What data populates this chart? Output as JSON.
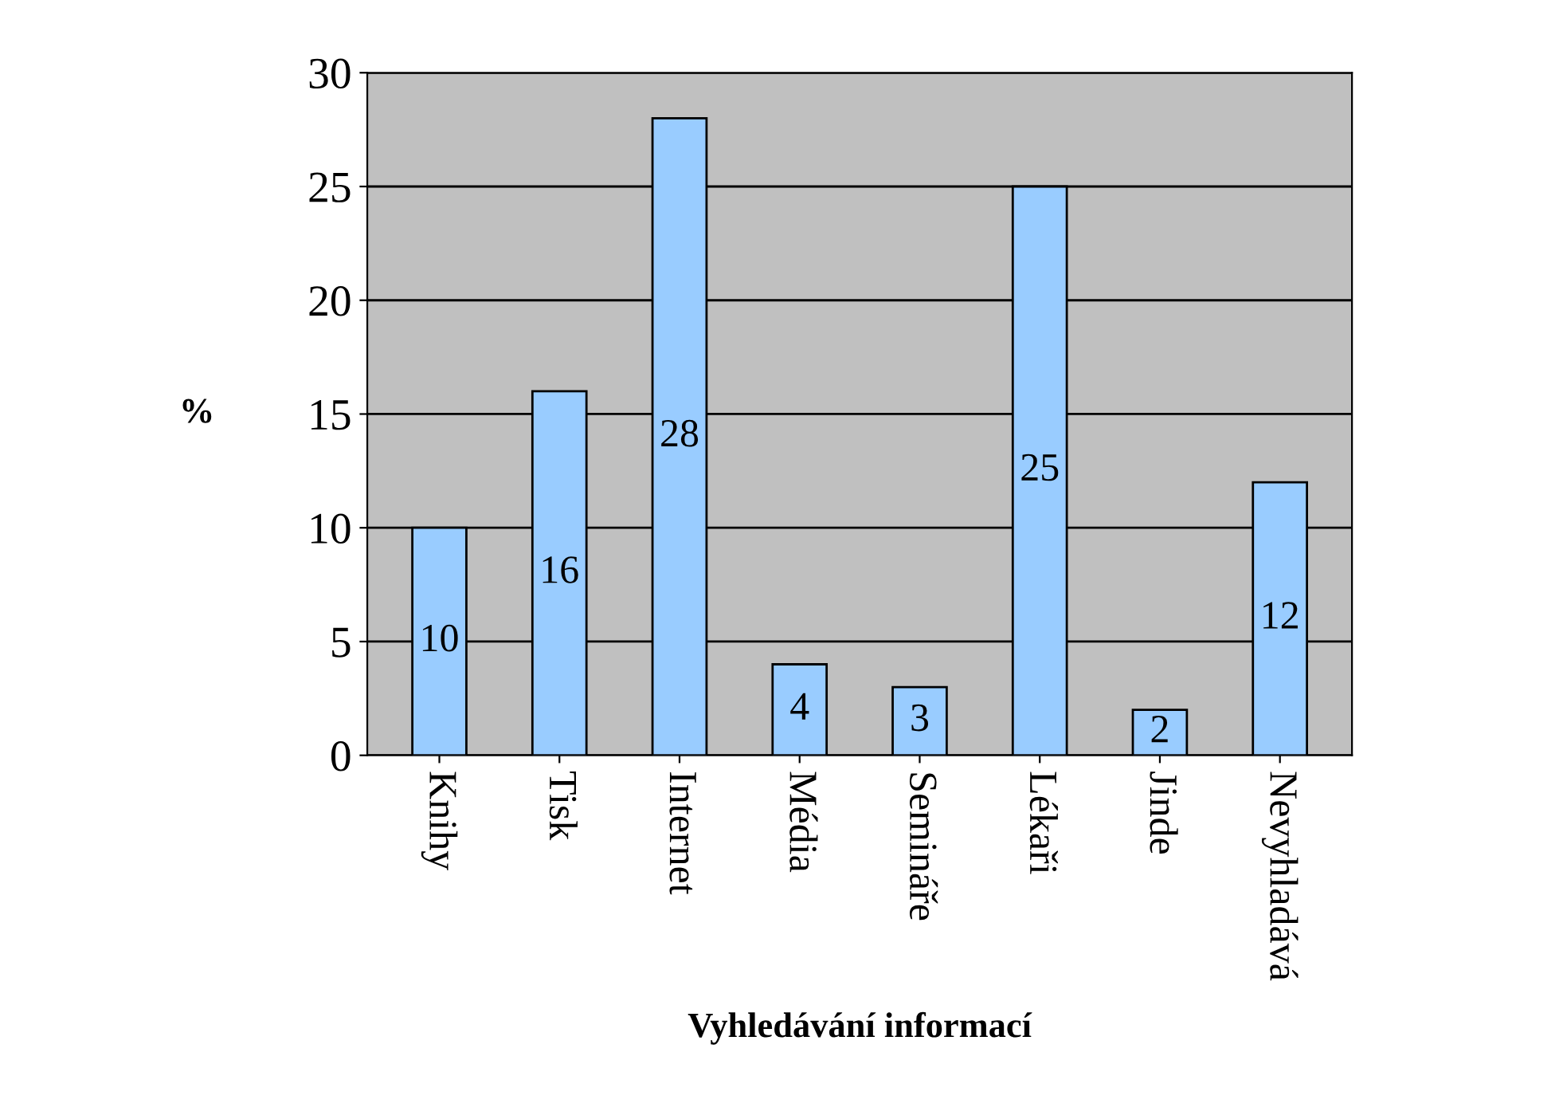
{
  "chart_data": {
    "type": "bar",
    "xlabel": "Vyhledávání informací",
    "ylabel": "%",
    "categories": [
      "Knihy",
      "Tisk",
      "Internet",
      "Média",
      "Semináře",
      "Lékaři",
      "Jinde",
      "Nevyhladává"
    ],
    "values": [
      10,
      16,
      28,
      4,
      3,
      25,
      2,
      12
    ],
    "color": "#99ccff",
    "ylim": [
      0,
      30
    ],
    "yticks": [
      0,
      5,
      10,
      15,
      20,
      25,
      30
    ],
    "grid": "y",
    "data_labels": true
  }
}
